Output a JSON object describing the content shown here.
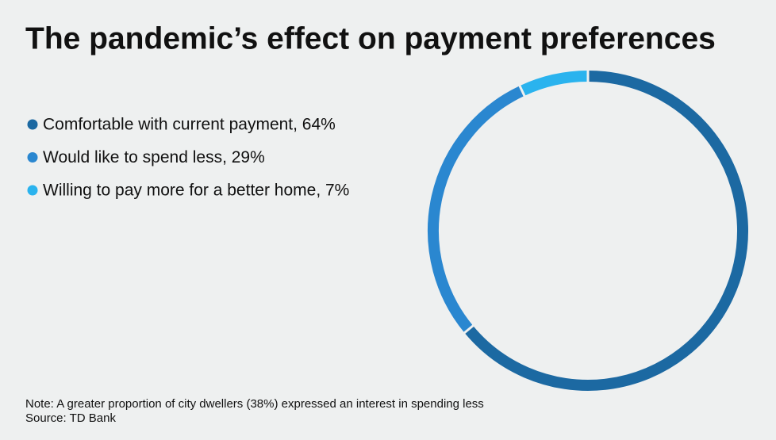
{
  "chart_data": {
    "type": "donut",
    "title": "The pandemic’s effect on payment preferences",
    "categories": [
      "Comfortable with current payment, 64%",
      "Would like to spend less, 29%",
      "Willing to pay more for a better home, 7%"
    ],
    "values": [
      64,
      29,
      7
    ],
    "colors": [
      "#1c69a2",
      "#2a87d0",
      "#2ab3ee"
    ],
    "note": "Note: A greater proportion of city dwellers (38%) expressed an interest in spending less",
    "source": "Source: TD Bank"
  }
}
